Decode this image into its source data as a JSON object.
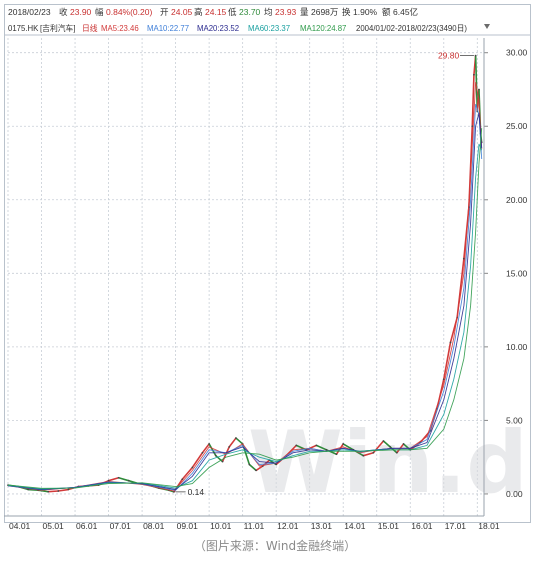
{
  "quote_bar": {
    "date": "2018/02/23",
    "close_label": "收",
    "close": "23.90",
    "change_label": "幅",
    "change": "0.84%(0.20)",
    "open_label": "开",
    "open": "24.05",
    "high_label": "高",
    "high": "24.15",
    "low_label": "低",
    "low": "23.70",
    "avg_label": "均",
    "avg": "23.93",
    "volume_label": "量",
    "volume": "2698万",
    "turnover_label": "换",
    "turnover": "1.90%",
    "amount_label": "额",
    "amount": "6.45亿"
  },
  "legend_bar": {
    "ticker": "0175.HK",
    "name": "[吉利汽车]",
    "period": "日线",
    "ma5": "MA5:23.46",
    "ma10": "MA10:22.77",
    "ma20": "MA20:23.52",
    "ma60": "MA60:23.37",
    "ma120": "MA120:24.87",
    "range": "2004/01/02-2018/02/23(3490日)"
  },
  "caption": "（图片来源：Wind金融终端）",
  "watermark": "Win.d",
  "colors": {
    "candle_up": "#d23a3a",
    "candle_down": "#2f8a3a",
    "ma5": "#d23a3a",
    "ma10": "#3f7fd8",
    "ma20": "#2b2b8f",
    "ma60": "#1aa0a0",
    "ma120": "#2e9a4a",
    "grid": "#c8ced6",
    "axis_text": "#333333",
    "annotation": "#c83030"
  },
  "chart_data": {
    "type": "line",
    "title": "",
    "xlabel": "",
    "ylabel": "",
    "ylim": [
      -1.5,
      31
    ],
    "yticks": [
      "0.00",
      "5.00",
      "10.00",
      "15.00",
      "20.00",
      "25.00",
      "30.00"
    ],
    "ytick_values": [
      0,
      5,
      10,
      15,
      20,
      25,
      30
    ],
    "xticks": [
      "04.01",
      "05.01",
      "06.01",
      "07.01",
      "08.01",
      "09.01",
      "10.01",
      "11.01",
      "12.01",
      "13.01",
      "14.01",
      "15.01",
      "16.01",
      "17.01",
      "18.01"
    ],
    "xtick_values": [
      2004.0,
      2005.0,
      2006.0,
      2007.0,
      2008.0,
      2009.0,
      2010.0,
      2011.0,
      2012.0,
      2013.0,
      2014.0,
      2015.0,
      2016.0,
      2017.0,
      2018.0
    ],
    "xlim": [
      2004.0,
      2018.2
    ],
    "grid": true,
    "annotations": [
      {
        "text": "29.80",
        "x": 2017.9,
        "y": 29.8
      },
      {
        "text": "0.14",
        "x": 2009.0,
        "y": 0.14
      }
    ],
    "series": [
      {
        "name": "",
        "role": "price",
        "x": [
          2004.0,
          2004.3,
          2004.6,
          2004.9,
          2005.2,
          2005.5,
          2005.8,
          2006.1,
          2006.4,
          2006.7,
          2007.0,
          2007.3,
          2007.6,
          2007.9,
          2008.2,
          2008.5,
          2008.8,
          2008.95,
          2009.2,
          2009.5,
          2009.8,
          2010.0,
          2010.2,
          2010.4,
          2010.6,
          2010.8,
          2011.0,
          2011.2,
          2011.4,
          2011.6,
          2011.8,
          2012.0,
          2012.3,
          2012.6,
          2012.9,
          2013.2,
          2013.5,
          2013.8,
          2014.0,
          2014.3,
          2014.6,
          2014.9,
          2015.2,
          2015.4,
          2015.6,
          2015.8,
          2016.0,
          2016.3,
          2016.6,
          2016.8,
          2017.0,
          2017.2,
          2017.4,
          2017.6,
          2017.75,
          2017.85,
          2017.9,
          2017.95,
          2018.0,
          2018.05,
          2018.1,
          2018.13
        ],
        "values": [
          0.6,
          0.5,
          0.3,
          0.25,
          0.15,
          0.2,
          0.3,
          0.5,
          0.55,
          0.6,
          0.9,
          1.1,
          0.9,
          0.7,
          0.6,
          0.4,
          0.25,
          0.14,
          1.0,
          1.8,
          2.8,
          3.4,
          2.6,
          2.2,
          3.2,
          3.8,
          3.4,
          2.0,
          1.6,
          1.9,
          2.3,
          2.0,
          2.6,
          3.3,
          3.0,
          3.3,
          3.0,
          2.7,
          3.4,
          3.0,
          2.6,
          2.8,
          3.6,
          3.2,
          2.8,
          3.4,
          3.0,
          3.5,
          4.3,
          5.8,
          7.8,
          10.3,
          12.0,
          16.0,
          19.5,
          25.0,
          28.5,
          29.8,
          26.0,
          27.5,
          24.5,
          23.9
        ]
      },
      {
        "name": "MA5",
        "role": "ma",
        "x": [
          2004.0,
          2005.0,
          2006.0,
          2007.0,
          2008.0,
          2008.95,
          2009.5,
          2010.0,
          2010.5,
          2011.0,
          2011.5,
          2012.0,
          2012.5,
          2013.0,
          2013.5,
          2014.0,
          2014.5,
          2015.0,
          2015.5,
          2016.0,
          2016.5,
          2017.0,
          2017.3,
          2017.6,
          2017.8,
          2017.95,
          2018.05,
          2018.13
        ],
        "values": [
          0.55,
          0.25,
          0.45,
          0.85,
          0.65,
          0.2,
          1.6,
          3.2,
          2.7,
          3.4,
          1.9,
          2.1,
          3.0,
          3.1,
          2.9,
          3.2,
          2.8,
          3.0,
          3.1,
          3.1,
          3.9,
          7.4,
          10.6,
          15.0,
          21.5,
          28.0,
          26.8,
          23.46
        ]
      },
      {
        "name": "MA10",
        "role": "ma",
        "x": [
          2004.0,
          2005.0,
          2006.0,
          2007.0,
          2008.0,
          2009.0,
          2009.5,
          2010.0,
          2010.5,
          2011.0,
          2011.5,
          2012.0,
          2012.5,
          2013.0,
          2013.5,
          2014.0,
          2014.5,
          2015.0,
          2015.5,
          2016.0,
          2016.5,
          2017.0,
          2017.3,
          2017.6,
          2017.8,
          2017.95,
          2018.05,
          2018.13
        ],
        "values": [
          0.55,
          0.28,
          0.45,
          0.82,
          0.68,
          0.25,
          1.4,
          3.0,
          2.8,
          3.3,
          2.0,
          2.1,
          2.9,
          3.1,
          2.9,
          3.1,
          2.85,
          3.0,
          3.1,
          3.1,
          3.7,
          7.0,
          10.0,
          14.0,
          20.0,
          26.5,
          25.8,
          22.77
        ]
      },
      {
        "name": "MA20",
        "role": "ma",
        "x": [
          2004.0,
          2005.0,
          2006.0,
          2007.0,
          2008.0,
          2009.0,
          2009.5,
          2010.0,
          2010.5,
          2011.0,
          2011.5,
          2012.0,
          2012.5,
          2013.0,
          2013.5,
          2014.0,
          2014.5,
          2015.0,
          2015.5,
          2016.0,
          2016.5,
          2017.0,
          2017.3,
          2017.6,
          2017.8,
          2017.95,
          2018.05,
          2018.13
        ],
        "values": [
          0.56,
          0.3,
          0.44,
          0.8,
          0.7,
          0.3,
          1.2,
          2.8,
          2.8,
          3.2,
          2.2,
          2.1,
          2.8,
          3.0,
          2.9,
          3.1,
          2.9,
          3.0,
          3.1,
          3.1,
          3.5,
          6.4,
          9.2,
          12.8,
          18.4,
          25.0,
          25.9,
          23.52
        ]
      },
      {
        "name": "MA60",
        "role": "ma",
        "x": [
          2004.0,
          2005.0,
          2006.0,
          2007.0,
          2008.0,
          2009.0,
          2009.5,
          2010.0,
          2010.5,
          2011.0,
          2011.5,
          2012.0,
          2012.5,
          2013.0,
          2013.5,
          2014.0,
          2014.5,
          2015.0,
          2015.5,
          2016.0,
          2016.5,
          2017.0,
          2017.3,
          2017.6,
          2017.8,
          2017.95,
          2018.05,
          2018.13
        ],
        "values": [
          0.58,
          0.34,
          0.42,
          0.76,
          0.74,
          0.4,
          0.9,
          2.3,
          2.7,
          3.0,
          2.5,
          2.2,
          2.6,
          2.9,
          2.9,
          3.0,
          2.9,
          3.0,
          3.0,
          3.0,
          3.3,
          5.4,
          7.8,
          11.0,
          15.5,
          21.5,
          23.8,
          23.37
        ]
      },
      {
        "name": "MA120",
        "role": "ma",
        "x": [
          2004.0,
          2005.0,
          2006.0,
          2007.0,
          2008.0,
          2009.0,
          2009.5,
          2010.0,
          2010.5,
          2011.0,
          2011.5,
          2012.0,
          2012.5,
          2013.0,
          2013.5,
          2014.0,
          2014.5,
          2015.0,
          2015.5,
          2016.0,
          2016.5,
          2017.0,
          2017.3,
          2017.6,
          2017.8,
          2017.95,
          2018.05,
          2018.13
        ],
        "values": [
          0.6,
          0.38,
          0.4,
          0.7,
          0.76,
          0.5,
          0.7,
          1.8,
          2.5,
          2.8,
          2.7,
          2.3,
          2.5,
          2.8,
          2.9,
          2.9,
          2.9,
          2.95,
          3.0,
          3.0,
          3.1,
          4.4,
          6.4,
          9.2,
          12.8,
          17.8,
          22.5,
          24.87
        ]
      }
    ]
  }
}
